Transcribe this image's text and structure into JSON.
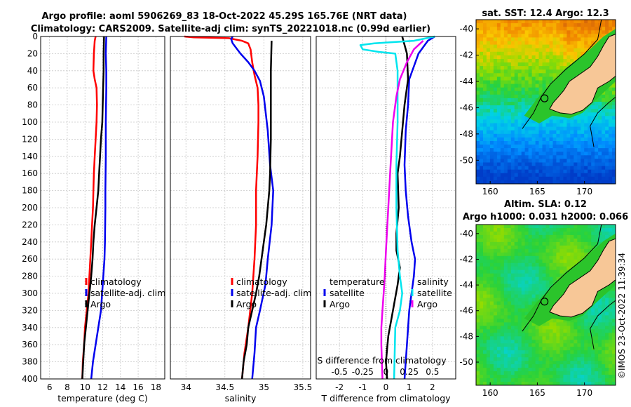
{
  "titles": {
    "line1": "Argo profile: aoml 5906269_83 18-Oct-2022 45.29S 165.76E (NRT data)",
    "line2": "Climatology: CARS2009. Satellite-adj clim: synTS_20221018.nc (0.99d earlier)"
  },
  "chart_data": [
    {
      "type": "line",
      "id": "temp",
      "xlabel": "temperature (deg C)",
      "ylabel": "",
      "xlim": [
        5,
        19
      ],
      "ylim": [
        0,
        400
      ],
      "xticks": [
        "6",
        "8",
        "10",
        "12",
        "14",
        "16",
        "18"
      ],
      "yticks": [
        "0",
        "20",
        "40",
        "60",
        "80",
        "100",
        "120",
        "140",
        "160",
        "180",
        "200",
        "220",
        "240",
        "260",
        "280",
        "300",
        "320",
        "340",
        "360",
        "380",
        "400"
      ],
      "grid": true,
      "legend": [
        "climatology",
        "satellite-adj. clim",
        "Argo"
      ],
      "series": [
        {
          "name": "climatology",
          "color": "#ff0000",
          "points": [
            [
              11.2,
              0
            ],
            [
              11.1,
              5
            ],
            [
              11.0,
              20
            ],
            [
              10.95,
              40
            ],
            [
              11.1,
              50
            ],
            [
              11.3,
              60
            ],
            [
              11.35,
              80
            ],
            [
              11.3,
              100
            ],
            [
              11.2,
              120
            ],
            [
              11.1,
              140
            ],
            [
              11.0,
              160
            ],
            [
              10.95,
              180
            ],
            [
              10.9,
              200
            ],
            [
              10.8,
              220
            ],
            [
              10.7,
              240
            ],
            [
              10.6,
              260
            ],
            [
              10.5,
              280
            ],
            [
              10.4,
              300
            ],
            [
              10.2,
              320
            ],
            [
              10.0,
              340
            ],
            [
              9.9,
              360
            ],
            [
              9.75,
              380
            ],
            [
              9.7,
              400
            ]
          ]
        },
        {
          "name": "satellite-adj. clim",
          "color": "#0000ee",
          "points": [
            [
              12.4,
              0
            ],
            [
              12.35,
              20
            ],
            [
              12.4,
              40
            ],
            [
              12.4,
              60
            ],
            [
              12.35,
              100
            ],
            [
              12.35,
              140
            ],
            [
              12.3,
              180
            ],
            [
              12.3,
              200
            ],
            [
              12.25,
              240
            ],
            [
              12.2,
              260
            ],
            [
              12.0,
              290
            ],
            [
              11.8,
              320
            ],
            [
              11.5,
              340
            ],
            [
              11.2,
              360
            ],
            [
              10.9,
              380
            ],
            [
              10.7,
              400
            ]
          ]
        },
        {
          "name": "Argo",
          "color": "#000000",
          "points": [
            [
              12.15,
              0
            ],
            [
              12.1,
              20
            ],
            [
              12.1,
              40
            ],
            [
              12.05,
              60
            ],
            [
              12.0,
              80
            ],
            [
              11.95,
              100
            ],
            [
              11.8,
              120
            ],
            [
              11.7,
              140
            ],
            [
              11.6,
              160
            ],
            [
              11.5,
              180
            ],
            [
              11.3,
              200
            ],
            [
              11.1,
              220
            ],
            [
              10.95,
              240
            ],
            [
              10.85,
              260
            ],
            [
              10.7,
              280
            ],
            [
              10.5,
              300
            ],
            [
              10.3,
              320
            ],
            [
              10.1,
              340
            ],
            [
              9.9,
              360
            ],
            [
              9.8,
              380
            ],
            [
              9.7,
              400
            ]
          ]
        }
      ]
    },
    {
      "type": "line",
      "id": "sal",
      "xlabel": "salinity",
      "ylabel": "",
      "xlim": [
        33.8,
        35.6
      ],
      "ylim": [
        0,
        400
      ],
      "xticks": [
        "34",
        "34.5",
        "35",
        "35.5"
      ],
      "grid": true,
      "legend": [
        "climatology",
        "satellite-adj. clim",
        "Argo"
      ],
      "series": [
        {
          "name": "climatology",
          "color": "#ff0000",
          "points": [
            [
              33.98,
              0
            ],
            [
              34.1,
              1
            ],
            [
              34.55,
              2
            ],
            [
              34.72,
              5
            ],
            [
              34.8,
              8
            ],
            [
              34.83,
              15
            ],
            [
              34.85,
              30
            ],
            [
              34.88,
              45
            ],
            [
              34.92,
              60
            ],
            [
              34.93,
              80
            ],
            [
              34.93,
              100
            ],
            [
              34.92,
              140
            ],
            [
              34.9,
              180
            ],
            [
              34.9,
              220
            ],
            [
              34.88,
              260
            ],
            [
              34.85,
              300
            ],
            [
              34.8,
              340
            ],
            [
              34.75,
              370
            ],
            [
              34.72,
              400
            ]
          ]
        },
        {
          "name": "satellite-adj. clim",
          "color": "#0000ee",
          "points": [
            [
              34.6,
              0
            ],
            [
              34.58,
              3
            ],
            [
              34.6,
              8
            ],
            [
              34.7,
              20
            ],
            [
              34.8,
              30
            ],
            [
              34.88,
              40
            ],
            [
              34.95,
              52
            ],
            [
              35.0,
              70
            ],
            [
              35.05,
              110
            ],
            [
              35.08,
              150
            ],
            [
              35.12,
              180
            ],
            [
              35.1,
              220
            ],
            [
              35.05,
              260
            ],
            [
              35.02,
              290
            ],
            [
              34.95,
              320
            ],
            [
              34.9,
              340
            ],
            [
              34.88,
              370
            ],
            [
              34.85,
              400
            ]
          ]
        },
        {
          "name": "Argo",
          "color": "#000000",
          "points": [
            [
              35.1,
              5
            ],
            [
              35.09,
              40
            ],
            [
              35.09,
              80
            ],
            [
              35.09,
              120
            ],
            [
              35.08,
              160
            ],
            [
              35.07,
              180
            ],
            [
              35.05,
              200
            ],
            [
              35.03,
              220
            ],
            [
              35.0,
              240
            ],
            [
              34.97,
              260
            ],
            [
              34.94,
              280
            ],
            [
              34.9,
              300
            ],
            [
              34.85,
              320
            ],
            [
              34.8,
              340
            ],
            [
              34.78,
              360
            ],
            [
              34.74,
              380
            ],
            [
              34.72,
              400
            ]
          ]
        }
      ]
    },
    {
      "type": "line",
      "id": "diff",
      "xlabel": "T difference from climatology",
      "ylabel": "",
      "xlim": [
        -3,
        3
      ],
      "ylim": [
        0,
        400
      ],
      "xticks": [
        "-2",
        "-1",
        "0",
        "1",
        "2"
      ],
      "top_axis_label": "S difference from climatology",
      "top_ticks": [
        "-0.5",
        "-0.25",
        "0",
        "0.25",
        "0.5"
      ],
      "grid": true,
      "legend_left": [
        "temperature",
        "satellite",
        "Argo"
      ],
      "legend_right": [
        "salinity",
        "satellite",
        "Argo"
      ],
      "series": [
        {
          "name": "temperature satellite",
          "color": "#0000ee",
          "points": [
            [
              2.1,
              0
            ],
            [
              1.8,
              5
            ],
            [
              1.4,
              20
            ],
            [
              1.0,
              50
            ],
            [
              0.95,
              80
            ],
            [
              0.85,
              110
            ],
            [
              0.8,
              150
            ],
            [
              0.85,
              180
            ],
            [
              0.95,
              210
            ],
            [
              1.1,
              240
            ],
            [
              1.25,
              260
            ],
            [
              1.2,
              280
            ],
            [
              1.1,
              300
            ],
            [
              1.0,
              320
            ],
            [
              0.9,
              360
            ],
            [
              0.8,
              400
            ]
          ]
        },
        {
          "name": "temperature Argo",
          "color": "#000000",
          "points": [
            [
              0.7,
              0
            ],
            [
              0.9,
              20
            ],
            [
              0.95,
              50
            ],
            [
              0.8,
              80
            ],
            [
              0.7,
              110
            ],
            [
              0.6,
              140
            ],
            [
              0.5,
              160
            ],
            [
              0.55,
              200
            ],
            [
              0.45,
              230
            ],
            [
              0.45,
              250
            ],
            [
              0.6,
              270
            ],
            [
              0.5,
              290
            ],
            [
              0.3,
              320
            ],
            [
              0.1,
              350
            ],
            [
              0.0,
              380
            ],
            [
              0.05,
              400
            ]
          ]
        },
        {
          "name": "salinity satellite",
          "color": "#00e5ee",
          "points": [
            [
              2.1,
              0
            ],
            [
              1.2,
              5
            ],
            [
              -0.5,
              8
            ],
            [
              -1.1,
              10
            ],
            [
              -1.0,
              15
            ],
            [
              -0.3,
              18
            ],
            [
              0.4,
              20
            ],
            [
              0.5,
              40
            ],
            [
              0.5,
              100
            ],
            [
              0.45,
              150
            ],
            [
              0.45,
              200
            ],
            [
              0.5,
              250
            ],
            [
              0.6,
              280
            ],
            [
              0.7,
              300
            ],
            [
              0.6,
              320
            ],
            [
              0.4,
              340
            ],
            [
              0.35,
              400
            ]
          ]
        },
        {
          "name": "salinity Argo",
          "color": "#ee00ee",
          "points": [
            [
              1.6,
              5
            ],
            [
              1.2,
              15
            ],
            [
              0.9,
              30
            ],
            [
              0.6,
              50
            ],
            [
              0.45,
              70
            ],
            [
              0.3,
              100
            ],
            [
              0.2,
              150
            ],
            [
              0.1,
              200
            ],
            [
              0.0,
              250
            ],
            [
              -0.05,
              280
            ],
            [
              -0.1,
              300
            ],
            [
              -0.15,
              320
            ],
            [
              -0.2,
              340
            ],
            [
              -0.2,
              360
            ],
            [
              -0.15,
              400
            ]
          ]
        }
      ]
    }
  ],
  "maps": [
    {
      "id": "sst",
      "title": "sat. SST: 12.4 Argo: 12.3",
      "xticks": [
        "160",
        "165",
        "170"
      ],
      "yticks": [
        "-40",
        "-42",
        "-44",
        "-46",
        "-48",
        "-50"
      ]
    },
    {
      "id": "sla",
      "title1": "Altim. SLA: 0.12",
      "title2": "Argo h1000: 0.031 h2000: 0.066",
      "xticks": [
        "160",
        "165",
        "170"
      ],
      "yticks": [
        "-40",
        "-42",
        "-44",
        "-46",
        "-48",
        "-50"
      ]
    }
  ],
  "watermark": "©IMOS 23-Oct-2022 11:39:34",
  "colors": {
    "land": "#f7c797",
    "coast": "#000000",
    "shelf": "#2bc42b"
  }
}
